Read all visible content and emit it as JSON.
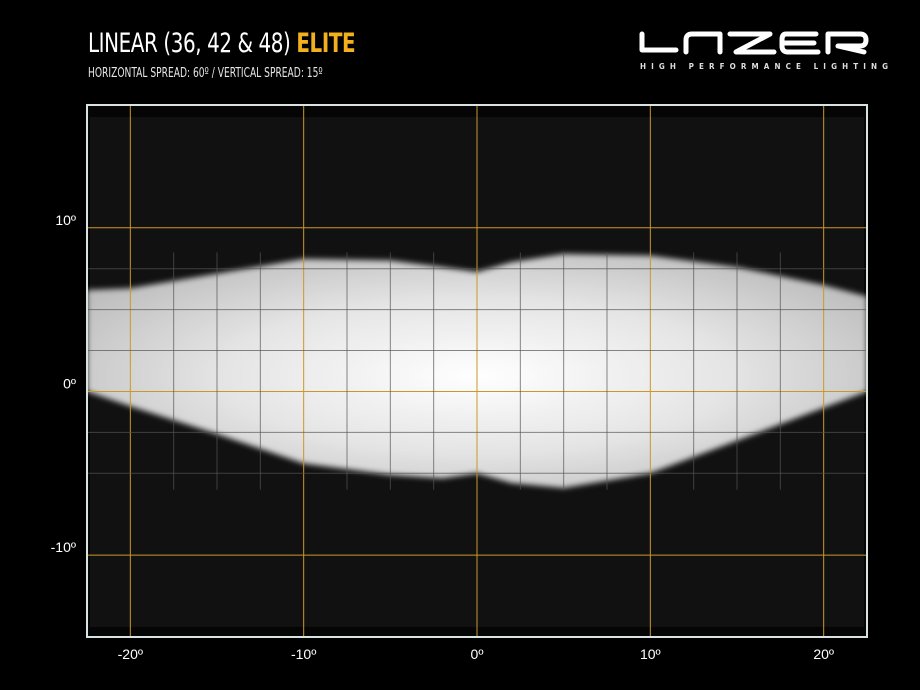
{
  "header": {
    "title_main": "LINEAR (36, 42 & 48)",
    "title_accent": "ELITE",
    "subtitle": "HORIZONTAL SPREAD: 60º  /  VERTICAL SPREAD:  15º"
  },
  "logo": {
    "brand": "LAZER",
    "tagline": "HIGH PERFORMANCE LIGHTING"
  },
  "colors": {
    "accent": "#f2b01e",
    "grid_major": "#c9982a",
    "grid_minor": "#555555",
    "frame": "#d8e4e4"
  },
  "chart_data": {
    "type": "heatmap",
    "title": "LINEAR (36, 42 & 48) ELITE",
    "xlim": [
      -22.5,
      22.5
    ],
    "ylim": [
      -15,
      17.5
    ],
    "x_ticks": [
      -20,
      -10,
      0,
      10,
      20
    ],
    "x_tick_labels": [
      "-20º",
      "-10º",
      "0º",
      "10º",
      "20º"
    ],
    "y_ticks": [
      10,
      0,
      -10
    ],
    "y_tick_labels": [
      "10º",
      "0º",
      "-10º"
    ],
    "minor_grid_step": 2.5,
    "grid": true,
    "beam_upper_edge": [
      [
        -22.5,
        6.2
      ],
      [
        -20,
        6.3
      ],
      [
        -15,
        7.2
      ],
      [
        -10,
        8.1
      ],
      [
        -5,
        8.0
      ],
      [
        -2,
        7.6
      ],
      [
        0,
        7.3
      ],
      [
        2,
        7.9
      ],
      [
        5,
        8.4
      ],
      [
        10,
        8.3
      ],
      [
        15,
        7.6
      ],
      [
        20,
        6.5
      ],
      [
        22.5,
        5.8
      ]
    ],
    "beam_lower_edge": [
      [
        -22.5,
        0.0
      ],
      [
        -20,
        -0.9
      ],
      [
        -15,
        -2.6
      ],
      [
        -10,
        -4.4
      ],
      [
        -5,
        -5.1
      ],
      [
        -2,
        -5.3
      ],
      [
        0,
        -5.0
      ],
      [
        2,
        -5.6
      ],
      [
        5,
        -5.9
      ],
      [
        10,
        -5.0
      ],
      [
        15,
        -3.0
      ],
      [
        20,
        -1.0
      ],
      [
        22.5,
        0.0
      ]
    ]
  }
}
